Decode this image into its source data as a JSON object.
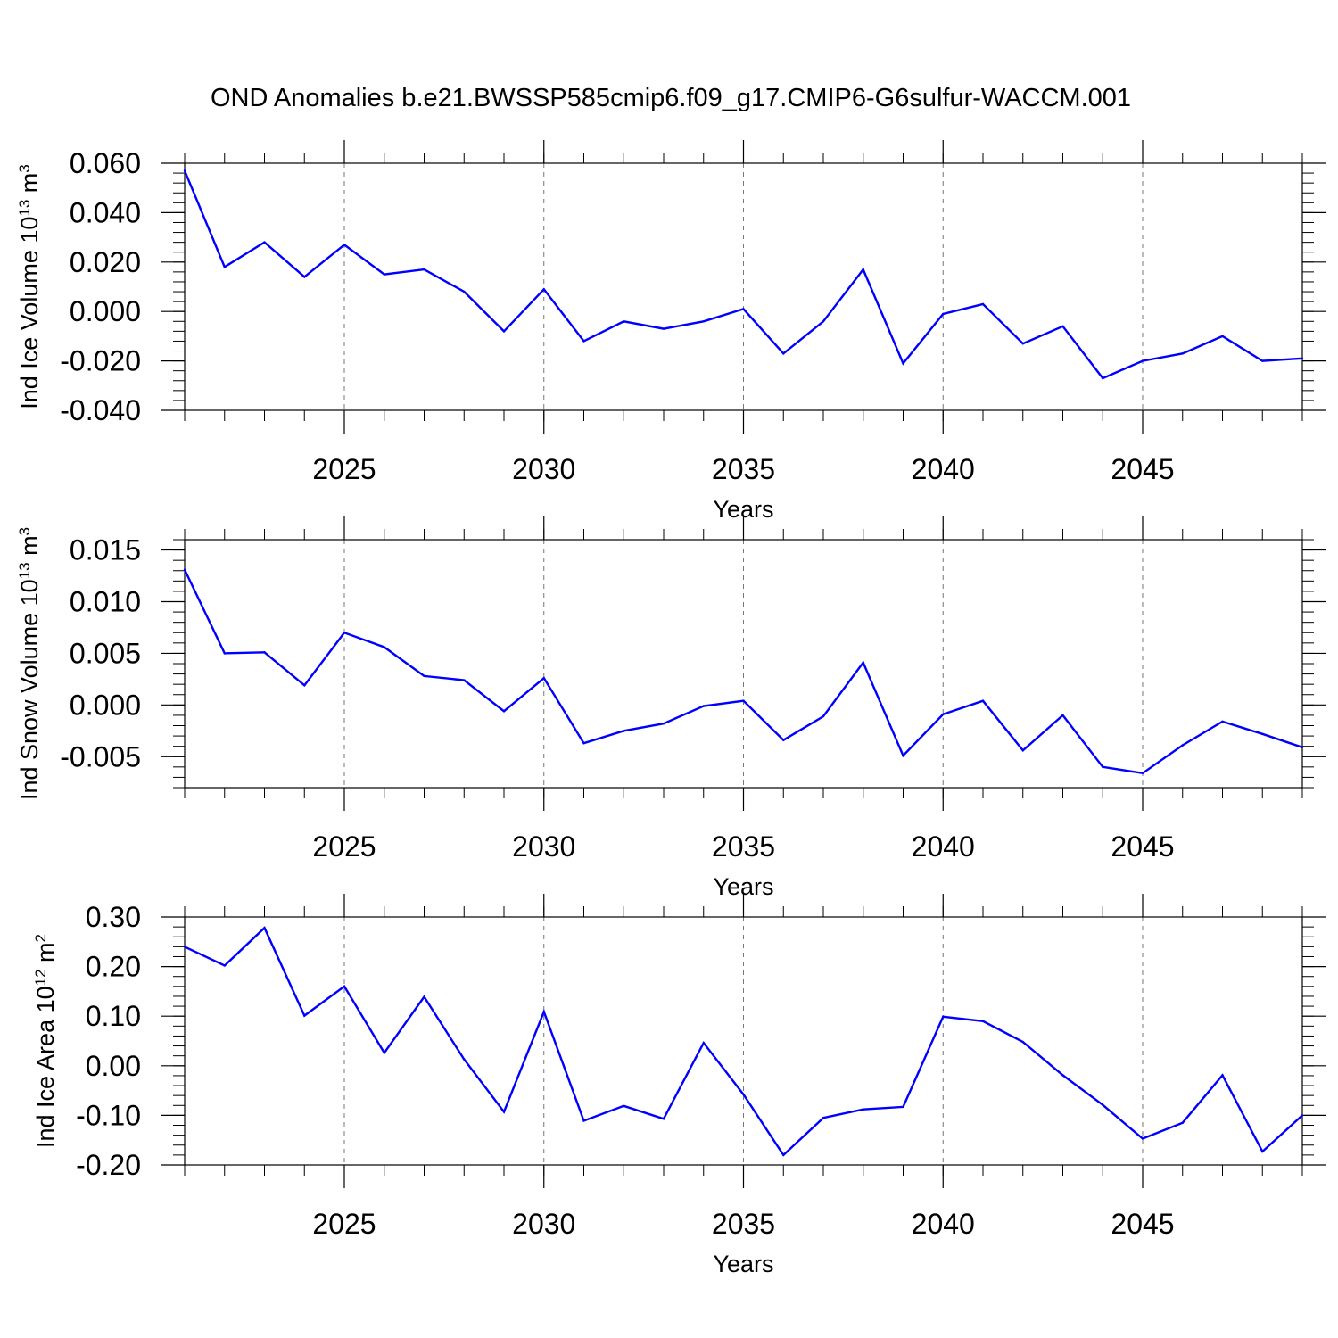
{
  "title": "OND Anomalies b.e21.BWSSP585cmip6.f09_g17.CMIP6-G6sulfur-WACCM.001",
  "colors": {
    "line": "#0000ff",
    "axis": "#000000",
    "grid": "#777777"
  },
  "chart_data": [
    {
      "type": "line",
      "xlabel": "Years",
      "ylabel": {
        "prefix": "Ind Ice Volume 10",
        "exp": "13",
        "unit": " m",
        "unit_exp": "3"
      },
      "xlim": [
        2021,
        2049
      ],
      "ylim": [
        -0.04,
        0.06
      ],
      "xticks": [
        "2025",
        "2030",
        "2035",
        "2040",
        "2045"
      ],
      "yticks": [
        "0.060",
        "0.040",
        "0.020",
        "0.000",
        "-0.020",
        "-0.040"
      ],
      "grid": "vertical dashed",
      "x": [
        2021,
        2022,
        2023,
        2024,
        2025,
        2026,
        2027,
        2028,
        2029,
        2030,
        2031,
        2032,
        2033,
        2034,
        2035,
        2036,
        2037,
        2038,
        2039,
        2040,
        2041,
        2042,
        2043,
        2044,
        2045,
        2046,
        2047,
        2048,
        2049
      ],
      "values": [
        0.057,
        0.018,
        0.028,
        0.014,
        0.027,
        0.015,
        0.017,
        0.008,
        -0.008,
        0.009,
        -0.012,
        -0.004,
        -0.007,
        -0.004,
        0.001,
        -0.017,
        -0.004,
        0.017,
        -0.021,
        -0.001,
        0.003,
        -0.013,
        -0.006,
        -0.027,
        -0.02,
        -0.017,
        -0.01,
        -0.02,
        -0.019
      ]
    },
    {
      "type": "line",
      "xlabel": "Years",
      "ylabel": {
        "prefix": "Ind Snow Volume 10",
        "exp": "13",
        "unit": " m",
        "unit_exp": "3"
      },
      "xlim": [
        2021,
        2049
      ],
      "ylim": [
        -0.008,
        0.016
      ],
      "xticks": [
        "2025",
        "2030",
        "2035",
        "2040",
        "2045"
      ],
      "yticks": [
        "0.015",
        "0.010",
        "0.005",
        "0.000",
        "-0.005"
      ],
      "grid": "vertical dashed",
      "x": [
        2021,
        2022,
        2023,
        2024,
        2025,
        2026,
        2027,
        2028,
        2029,
        2030,
        2031,
        2032,
        2033,
        2034,
        2035,
        2036,
        2037,
        2038,
        2039,
        2040,
        2041,
        2042,
        2043,
        2044,
        2045,
        2046,
        2047,
        2048,
        2049
      ],
      "values": [
        0.0131,
        0.005,
        0.0051,
        0.0019,
        0.007,
        0.0056,
        0.0028,
        0.0024,
        -0.0006,
        0.0026,
        -0.0037,
        -0.0025,
        -0.0018,
        -0.0001,
        0.0004,
        -0.0034,
        -0.0011,
        0.0041,
        -0.0049,
        -0.0009,
        0.0004,
        -0.0044,
        -0.001,
        -0.006,
        -0.0066,
        -0.0039,
        -0.0016,
        -0.0028,
        -0.0041
      ]
    },
    {
      "type": "line",
      "xlabel": "Years",
      "ylabel": {
        "prefix": "Ind Ice Area 10",
        "exp": "12",
        "unit": " m",
        "unit_exp": "2"
      },
      "xlim": [
        2021,
        2049
      ],
      "ylim": [
        -0.2,
        0.3
      ],
      "xticks": [
        "2025",
        "2030",
        "2035",
        "2040",
        "2045"
      ],
      "yticks": [
        "0.30",
        "0.20",
        "0.10",
        "0.00",
        "-0.10",
        "-0.20"
      ],
      "grid": "vertical dashed",
      "x": [
        2021,
        2022,
        2023,
        2024,
        2025,
        2026,
        2027,
        2028,
        2029,
        2030,
        2031,
        2032,
        2033,
        2034,
        2035,
        2036,
        2037,
        2038,
        2039,
        2040,
        2041,
        2042,
        2043,
        2044,
        2045,
        2046,
        2047,
        2048,
        2049
      ],
      "values": [
        0.24,
        0.202,
        0.278,
        0.101,
        0.16,
        0.026,
        0.139,
        0.013,
        -0.093,
        0.109,
        -0.111,
        -0.081,
        -0.107,
        0.046,
        -0.058,
        -0.18,
        -0.105,
        -0.088,
        -0.083,
        0.099,
        0.09,
        0.048,
        -0.019,
        -0.079,
        -0.147,
        -0.115,
        -0.019,
        -0.173,
        -0.1
      ]
    }
  ]
}
